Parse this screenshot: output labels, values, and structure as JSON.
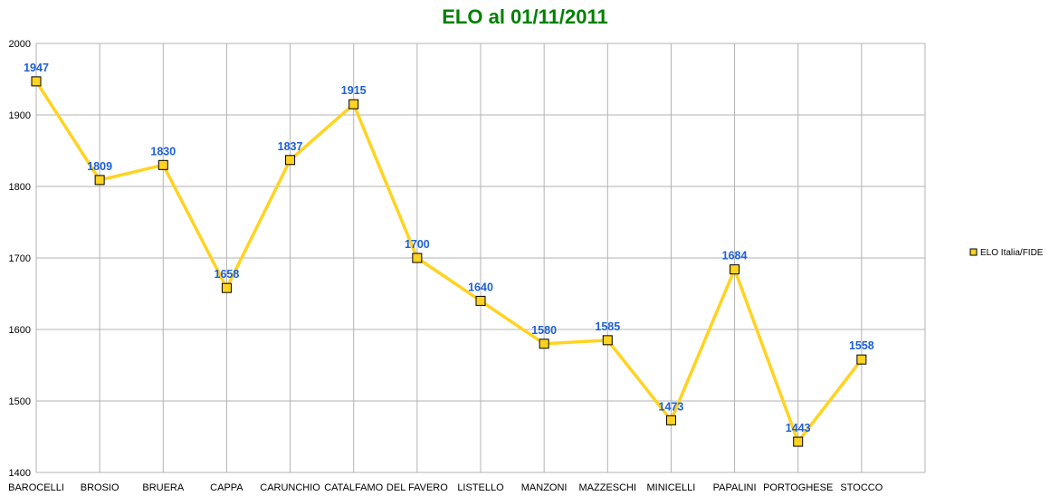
{
  "chart_data": {
    "type": "line",
    "title": "ELO al 01/11/2011",
    "xlabel": "",
    "ylabel": "",
    "ylim": [
      1400,
      2000
    ],
    "yticks": [
      1400,
      1500,
      1600,
      1700,
      1800,
      1900,
      2000
    ],
    "grid": true,
    "legend_position": "right",
    "categories": [
      "BAROCELLI",
      "BROSIO",
      "BRUERA",
      "CAPPA",
      "CARUNCHIO",
      "CATALFAMO",
      "DEL FAVERO",
      "LISTELLO",
      "MANZONI",
      "MAZZESCHI",
      "MINICELLI",
      "PAPALINI",
      "PORTOGHESE",
      "STOCCO"
    ],
    "series": [
      {
        "name": "ELO Italia/FIDE",
        "values": [
          1947,
          1809,
          1830,
          1658,
          1837,
          1915,
          1700,
          1640,
          1580,
          1585,
          1473,
          1684,
          1443,
          1558
        ]
      }
    ]
  },
  "colors": {
    "title": "#008000",
    "line": "#ffd320",
    "marker_fill": "#ffd320",
    "marker_stroke": "#000000",
    "data_label": "#1e5fd8",
    "grid": "#b3b3b3",
    "axis": "#b3b3b3"
  }
}
